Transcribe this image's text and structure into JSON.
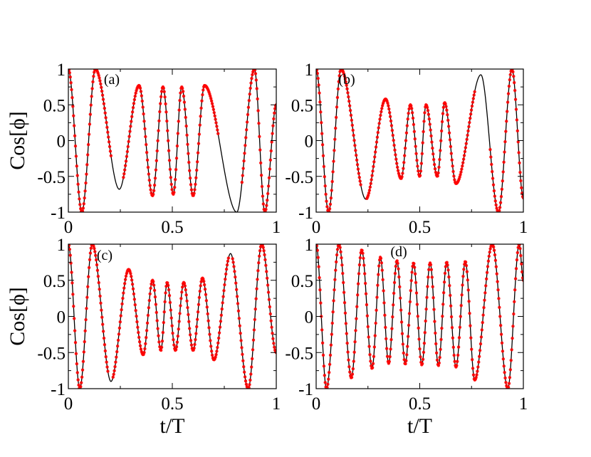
{
  "chart_data": [
    {
      "type": "line",
      "panel_label": "(a)",
      "xlabel": "",
      "ylabel": "Cos[ϕ]",
      "xlim": [
        0,
        1
      ],
      "ylim": [
        -1,
        1
      ],
      "xticks": [
        "0",
        "0.5",
        "1"
      ],
      "yticks": [
        "1",
        "0.5",
        "0",
        "-0.5",
        "-1"
      ],
      "grid": false,
      "series": [
        {
          "style": "solid-black-line",
          "color": "#000000",
          "anchors_x": [
            0,
            0.065,
            0.13,
            0.245,
            0.34,
            0.405,
            0.455,
            0.505,
            0.545,
            0.6,
            0.655,
            0.81,
            0.895,
            0.945,
            1.0
          ],
          "anchors_y": [
            1,
            -1,
            1,
            -0.68,
            0.77,
            -0.77,
            0.75,
            -0.75,
            0.75,
            -0.77,
            0.77,
            -1.0,
            1,
            -1,
            0.5
          ]
        },
        {
          "style": "red-circle-markers",
          "color": "#ff0000",
          "segments": [
            [
              0,
              0.205
            ],
            [
              0.265,
              0.72
            ],
            [
              0.835,
              1.0
            ]
          ]
        }
      ]
    },
    {
      "type": "line",
      "panel_label": "(b)",
      "xlabel": "",
      "ylabel": "",
      "xlim": [
        0,
        1
      ],
      "ylim": [
        -1,
        1
      ],
      "xticks": [
        "0",
        "0.5",
        "1"
      ],
      "yticks": [
        "1",
        "0.5",
        "0",
        "-0.5",
        "-1"
      ],
      "grid": false,
      "series": [
        {
          "style": "solid-black-line",
          "color": "#000000",
          "anchors_x": [
            0,
            0.06,
            0.12,
            0.24,
            0.335,
            0.41,
            0.455,
            0.5,
            0.53,
            0.585,
            0.62,
            0.675,
            0.795,
            0.88,
            0.945,
            1.0
          ],
          "anchors_y": [
            1,
            -1,
            1,
            -0.82,
            0.58,
            -0.53,
            0.5,
            -0.5,
            0.5,
            -0.5,
            0.53,
            -0.6,
            0.92,
            -1,
            1,
            -0.8
          ]
        },
        {
          "style": "red-circle-markers",
          "color": "#ff0000",
          "segments": [
            [
              0,
              0.215
            ],
            [
              0.245,
              0.765
            ],
            [
              0.84,
              1.0
            ]
          ]
        }
      ]
    },
    {
      "type": "line",
      "panel_label": "(c)",
      "xlabel": "t/T",
      "ylabel": "Cos[ϕ]",
      "xlim": [
        0,
        1
      ],
      "ylim": [
        -1,
        1
      ],
      "xticks": [
        "0",
        "0.5",
        "1"
      ],
      "yticks": [
        "1",
        "0.5",
        "0",
        "-0.5",
        "-1"
      ],
      "grid": false,
      "series": [
        {
          "style": "solid-black-line",
          "color": "#000000",
          "anchors_x": [
            0,
            0.055,
            0.115,
            0.205,
            0.29,
            0.36,
            0.405,
            0.445,
            0.475,
            0.515,
            0.555,
            0.6,
            0.645,
            0.7,
            0.78,
            0.865,
            0.93,
            1.0
          ],
          "anchors_y": [
            1,
            -1,
            1,
            -0.9,
            0.65,
            -0.53,
            0.5,
            -0.47,
            0.47,
            -0.47,
            0.47,
            -0.47,
            0.53,
            -0.6,
            0.87,
            -1,
            1,
            -0.5
          ]
        },
        {
          "style": "red-circle-markers",
          "color": "#ff0000",
          "segments": [
            [
              0,
              0.19
            ],
            [
              0.215,
              0.77
            ],
            [
              0.79,
              1.0
            ]
          ]
        }
      ]
    },
    {
      "type": "line",
      "panel_label": "(d)",
      "xlabel": "t/T",
      "ylabel": "",
      "xlim": [
        0,
        1
      ],
      "ylim": [
        -1,
        1
      ],
      "xticks": [
        "0",
        "0.5",
        "1"
      ],
      "yticks": [
        "1",
        "0.5",
        "0",
        "-0.5",
        "-1"
      ],
      "grid": false,
      "series": [
        {
          "style": "solid-black-line",
          "color": "#000000",
          "anchors_x": [
            0,
            0.05,
            0.11,
            0.17,
            0.22,
            0.27,
            0.31,
            0.35,
            0.39,
            0.43,
            0.47,
            0.51,
            0.55,
            0.59,
            0.63,
            0.675,
            0.72,
            0.765,
            0.85,
            0.925,
            0.98,
            1.0
          ],
          "anchors_y": [
            1,
            -1,
            1,
            -0.85,
            0.92,
            -0.72,
            0.82,
            -0.65,
            0.77,
            -0.66,
            0.74,
            -0.67,
            0.74,
            -0.68,
            0.75,
            -0.7,
            0.76,
            -0.88,
            1,
            -1,
            1,
            0.5
          ]
        },
        {
          "style": "red-circle-markers",
          "color": "#ff0000",
          "segments": [
            [
              0,
              1.0
            ]
          ]
        }
      ]
    }
  ]
}
